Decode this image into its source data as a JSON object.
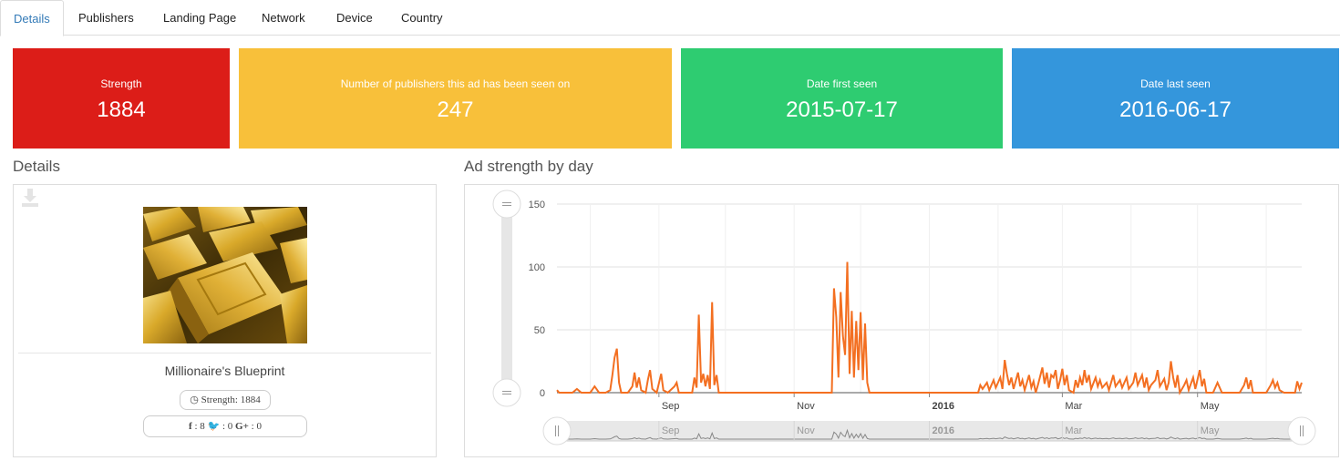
{
  "tabs": [
    "Details",
    "Publishers",
    "Landing Page",
    "Network",
    "Device",
    "Country"
  ],
  "active_tab": "Details",
  "cards": [
    {
      "label": "Strength",
      "value": "1884",
      "color": "#dc1d18"
    },
    {
      "label": "Number of publishers this ad has been seen on",
      "value": "247",
      "color": "#f8c03a"
    },
    {
      "label": "Date first seen",
      "value": "2015-07-17",
      "color": "#2ecc71"
    },
    {
      "label": "Date last seen",
      "value": "2016-06-17",
      "color": "#3496dc"
    }
  ],
  "details": {
    "title": "Details",
    "ad_title": "Millionaire's Blueprint",
    "strength_label": "Strength: 1884",
    "social": {
      "facebook": "8",
      "twitter": "0",
      "gplus": "0"
    }
  },
  "chart_section_title": "Ad strength by day",
  "chart_data": {
    "type": "line",
    "title": "",
    "ylim": [
      0,
      150
    ],
    "y_ticks": [
      "0",
      "50",
      "100",
      "150"
    ],
    "x_ticks": [
      "Sep",
      "Nov",
      "2016",
      "Mar",
      "May"
    ],
    "navigator_ticks": [
      "Sep",
      "Nov",
      "2016",
      "Mar",
      "May"
    ],
    "series_color": "#f36f21",
    "x_range": [
      "2015-07-17",
      "2016-06-17"
    ],
    "series": [
      {
        "values": [
          [
            "2015-07-17",
            2
          ],
          [
            "2015-07-18",
            0
          ],
          [
            "2015-07-24",
            0
          ],
          [
            "2015-07-26",
            3
          ],
          [
            "2015-07-28",
            0
          ],
          [
            "2015-08-01",
            0
          ],
          [
            "2015-08-03",
            5
          ],
          [
            "2015-08-05",
            0
          ],
          [
            "2015-08-08",
            0
          ],
          [
            "2015-08-10",
            2
          ],
          [
            "2015-08-11",
            14
          ],
          [
            "2015-08-12",
            28
          ],
          [
            "2015-08-13",
            35
          ],
          [
            "2015-08-14",
            8
          ],
          [
            "2015-08-15",
            0
          ],
          [
            "2015-08-18",
            0
          ],
          [
            "2015-08-20",
            5
          ],
          [
            "2015-08-21",
            16
          ],
          [
            "2015-08-22",
            4
          ],
          [
            "2015-08-23",
            12
          ],
          [
            "2015-08-24",
            2
          ],
          [
            "2015-08-26",
            0
          ],
          [
            "2015-08-27",
            10
          ],
          [
            "2015-08-28",
            18
          ],
          [
            "2015-08-29",
            3
          ],
          [
            "2015-08-31",
            0
          ],
          [
            "2015-09-02",
            15
          ],
          [
            "2015-09-03",
            2
          ],
          [
            "2015-09-05",
            0
          ],
          [
            "2015-09-08",
            5
          ],
          [
            "2015-09-09",
            8
          ],
          [
            "2015-09-10",
            0
          ],
          [
            "2015-09-16",
            0
          ],
          [
            "2015-09-17",
            12
          ],
          [
            "2015-09-18",
            4
          ],
          [
            "2015-09-19",
            62
          ],
          [
            "2015-09-20",
            8
          ],
          [
            "2015-09-21",
            15
          ],
          [
            "2015-09-22",
            5
          ],
          [
            "2015-09-23",
            14
          ],
          [
            "2015-09-24",
            3
          ],
          [
            "2015-09-25",
            72
          ],
          [
            "2015-09-26",
            6
          ],
          [
            "2015-09-27",
            14
          ],
          [
            "2015-09-28",
            0
          ],
          [
            "2015-10-20",
            0
          ],
          [
            "2015-10-27",
            0
          ],
          [
            "2015-11-15",
            0
          ],
          [
            "2015-11-18",
            0
          ],
          [
            "2015-11-19",
            83
          ],
          [
            "2015-11-20",
            60
          ],
          [
            "2015-11-21",
            12
          ],
          [
            "2015-11-22",
            80
          ],
          [
            "2015-11-23",
            45
          ],
          [
            "2015-11-24",
            30
          ],
          [
            "2015-11-25",
            104
          ],
          [
            "2015-11-26",
            15
          ],
          [
            "2015-11-27",
            65
          ],
          [
            "2015-11-28",
            12
          ],
          [
            "2015-11-29",
            57
          ],
          [
            "2015-11-30",
            18
          ],
          [
            "2015-12-01",
            64
          ],
          [
            "2015-12-02",
            10
          ],
          [
            "2015-12-03",
            55
          ],
          [
            "2015-12-04",
            8
          ],
          [
            "2015-12-05",
            0
          ],
          [
            "2016-01-20",
            0
          ],
          [
            "2016-01-23",
            0
          ],
          [
            "2016-01-24",
            6
          ],
          [
            "2016-01-25",
            3
          ],
          [
            "2016-01-27",
            8
          ],
          [
            "2016-01-28",
            2
          ],
          [
            "2016-01-30",
            10
          ],
          [
            "2016-01-31",
            4
          ],
          [
            "2016-02-02",
            12
          ],
          [
            "2016-02-03",
            3
          ],
          [
            "2016-02-04",
            26
          ],
          [
            "2016-02-05",
            15
          ],
          [
            "2016-02-06",
            6
          ],
          [
            "2016-02-07",
            12
          ],
          [
            "2016-02-08",
            3
          ],
          [
            "2016-02-10",
            16
          ],
          [
            "2016-02-11",
            5
          ],
          [
            "2016-02-12",
            10
          ],
          [
            "2016-02-13",
            2
          ],
          [
            "2016-02-14",
            8
          ],
          [
            "2016-02-15",
            14
          ],
          [
            "2016-02-16",
            4
          ],
          [
            "2016-02-17",
            9
          ],
          [
            "2016-02-18",
            0
          ],
          [
            "2016-02-19",
            6
          ],
          [
            "2016-02-21",
            20
          ],
          [
            "2016-02-22",
            7
          ],
          [
            "2016-02-23",
            16
          ],
          [
            "2016-02-24",
            4
          ],
          [
            "2016-02-25",
            14
          ],
          [
            "2016-02-26",
            12
          ],
          [
            "2016-02-27",
            18
          ],
          [
            "2016-02-28",
            3
          ],
          [
            "2016-02-29",
            10
          ],
          [
            "2016-03-01",
            19
          ],
          [
            "2016-03-02",
            6
          ],
          [
            "2016-03-03",
            14
          ],
          [
            "2016-03-04",
            2
          ],
          [
            "2016-03-06",
            0
          ],
          [
            "2016-03-07",
            10
          ],
          [
            "2016-03-08",
            4
          ],
          [
            "2016-03-09",
            12
          ],
          [
            "2016-03-10",
            6
          ],
          [
            "2016-03-11",
            18
          ],
          [
            "2016-03-12",
            8
          ],
          [
            "2016-03-13",
            14
          ],
          [
            "2016-03-14",
            3
          ],
          [
            "2016-03-16",
            12
          ],
          [
            "2016-03-17",
            5
          ],
          [
            "2016-03-18",
            10
          ],
          [
            "2016-03-19",
            4
          ],
          [
            "2016-03-21",
            8
          ],
          [
            "2016-03-22",
            2
          ],
          [
            "2016-03-24",
            14
          ],
          [
            "2016-03-25",
            5
          ],
          [
            "2016-03-27",
            10
          ],
          [
            "2016-03-28",
            4
          ],
          [
            "2016-03-30",
            12
          ],
          [
            "2016-03-31",
            3
          ],
          [
            "2016-04-02",
            8
          ],
          [
            "2016-04-03",
            16
          ],
          [
            "2016-04-04",
            6
          ],
          [
            "2016-04-05",
            10
          ],
          [
            "2016-04-06",
            14
          ],
          [
            "2016-04-07",
            4
          ],
          [
            "2016-04-08",
            12
          ],
          [
            "2016-04-09",
            2
          ],
          [
            "2016-04-10",
            6
          ],
          [
            "2016-04-12",
            10
          ],
          [
            "2016-04-13",
            18
          ],
          [
            "2016-04-14",
            5
          ],
          [
            "2016-04-16",
            11
          ],
          [
            "2016-04-17",
            2
          ],
          [
            "2016-04-18",
            8
          ],
          [
            "2016-04-19",
            25
          ],
          [
            "2016-04-20",
            12
          ],
          [
            "2016-04-21",
            4
          ],
          [
            "2016-04-22",
            14
          ],
          [
            "2016-04-23",
            0
          ],
          [
            "2016-04-25",
            6
          ],
          [
            "2016-04-26",
            10
          ],
          [
            "2016-04-27",
            2
          ],
          [
            "2016-04-28",
            7
          ],
          [
            "2016-04-29",
            12
          ],
          [
            "2016-04-30",
            3
          ],
          [
            "2016-05-02",
            18
          ],
          [
            "2016-05-03",
            5
          ],
          [
            "2016-05-04",
            11
          ],
          [
            "2016-05-05",
            0
          ],
          [
            "2016-05-08",
            0
          ],
          [
            "2016-05-09",
            4
          ],
          [
            "2016-05-10",
            8
          ],
          [
            "2016-05-12",
            0
          ],
          [
            "2016-05-20",
            0
          ],
          [
            "2016-05-22",
            6
          ],
          [
            "2016-05-23",
            12
          ],
          [
            "2016-05-24",
            3
          ],
          [
            "2016-05-25",
            10
          ],
          [
            "2016-05-26",
            0
          ],
          [
            "2016-06-01",
            0
          ],
          [
            "2016-06-03",
            6
          ],
          [
            "2016-06-04",
            10
          ],
          [
            "2016-06-05",
            4
          ],
          [
            "2016-06-06",
            8
          ],
          [
            "2016-06-07",
            2
          ],
          [
            "2016-06-09",
            0
          ],
          [
            "2016-06-14",
            0
          ],
          [
            "2016-06-15",
            9
          ],
          [
            "2016-06-16",
            3
          ],
          [
            "2016-06-17",
            8
          ]
        ]
      }
    ]
  }
}
